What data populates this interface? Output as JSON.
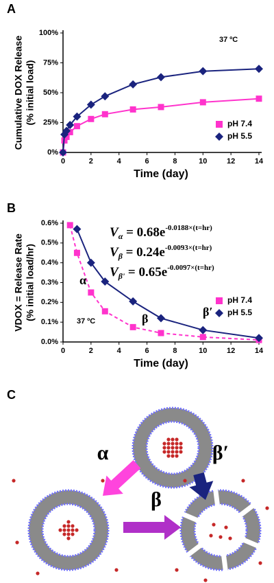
{
  "chart_data": [
    {
      "type": "line",
      "panel_label": "A",
      "x_label": "Time (day)",
      "y_label": [
        "Cumulative DOX Release",
        "(% initial load)"
      ],
      "annotation": "37 ºC",
      "xlim": [
        0,
        14
      ],
      "xticks": [
        0,
        2,
        4,
        6,
        8,
        10,
        12,
        14
      ],
      "ylim": [
        0,
        100
      ],
      "yticks": [
        {
          "value": 0,
          "label": "0%"
        },
        {
          "value": 25,
          "label": "25%"
        },
        {
          "value": 50,
          "label": "50%"
        },
        {
          "value": 75,
          "label": "75%"
        },
        {
          "value": 100,
          "label": "100%"
        }
      ],
      "legend": "lower right",
      "series": [
        {
          "name": "pH 7.4",
          "color": "#ff33cc",
          "marker": "square",
          "line_style": "solid",
          "x": [
            0,
            0.1,
            0.25,
            0.5,
            1,
            2,
            3,
            5,
            7,
            10,
            14
          ],
          "values": [
            0,
            10,
            13,
            17,
            22,
            28,
            32,
            36,
            38,
            42,
            45
          ]
        },
        {
          "name": "pH 5.5",
          "color": "#1a237e",
          "marker": "diamond",
          "line_style": "solid",
          "x": [
            0,
            0.1,
            0.25,
            0.5,
            1,
            2,
            3,
            5,
            7,
            10,
            14
          ],
          "values": [
            0,
            15,
            18,
            23,
            30,
            40,
            47,
            57,
            63,
            68,
            70
          ]
        }
      ]
    },
    {
      "type": "line",
      "panel_label": "B",
      "x_label": "Time (day)",
      "y_label": [
        "VDOX = Release Rate",
        "(% initial load/hr)"
      ],
      "annotation": "37 ºC",
      "xlim": [
        0,
        14
      ],
      "xticks": [
        0,
        2,
        4,
        6,
        8,
        10,
        12,
        14
      ],
      "ylim": [
        0,
        0.6
      ],
      "yticks": [
        {
          "value": 0,
          "label": "0.0%"
        },
        {
          "value": 0.1,
          "label": "0.1%"
        },
        {
          "value": 0.2,
          "label": "0.2%"
        },
        {
          "value": 0.3,
          "label": "0.3%"
        },
        {
          "value": 0.4,
          "label": "0.4%"
        },
        {
          "value": 0.5,
          "label": "0.5%"
        },
        {
          "value": 0.6,
          "label": "0.6%"
        }
      ],
      "legend": "lower right",
      "phase_labels": [
        "α",
        "β",
        "β′"
      ],
      "equations": [
        {
          "base": "V",
          "sub": "α",
          "rhs": " = 0.68e",
          "exp": "-0.0188×(t=hr)"
        },
        {
          "base": "V",
          "sub": "β",
          "rhs": " = 0.24e",
          "exp": "-0.0093×(t=hr)"
        },
        {
          "base": "V",
          "sub": "β'",
          "rhs": " = 0.65e",
          "exp": "-0.0097×(t=hr)"
        }
      ],
      "series": [
        {
          "name": "pH 7.4",
          "color": "#ff33cc",
          "marker": "square",
          "line_style": "dashed",
          "x": [
            0.5,
            1,
            2,
            3,
            5,
            7,
            10,
            14
          ],
          "values": [
            0.59,
            0.45,
            0.25,
            0.155,
            0.075,
            0.045,
            0.025,
            0.01
          ]
        },
        {
          "name": "pH 5.5",
          "color": "#1a237e",
          "marker": "diamond",
          "line_style": "solid",
          "x": [
            1,
            2,
            3,
            5,
            7,
            10,
            14
          ],
          "values": [
            0.57,
            0.4,
            0.305,
            0.205,
            0.12,
            0.06,
            0.02
          ]
        }
      ]
    }
  ],
  "panel_c": {
    "label": "C",
    "arrows": [
      "α",
      "β",
      "β′"
    ]
  }
}
